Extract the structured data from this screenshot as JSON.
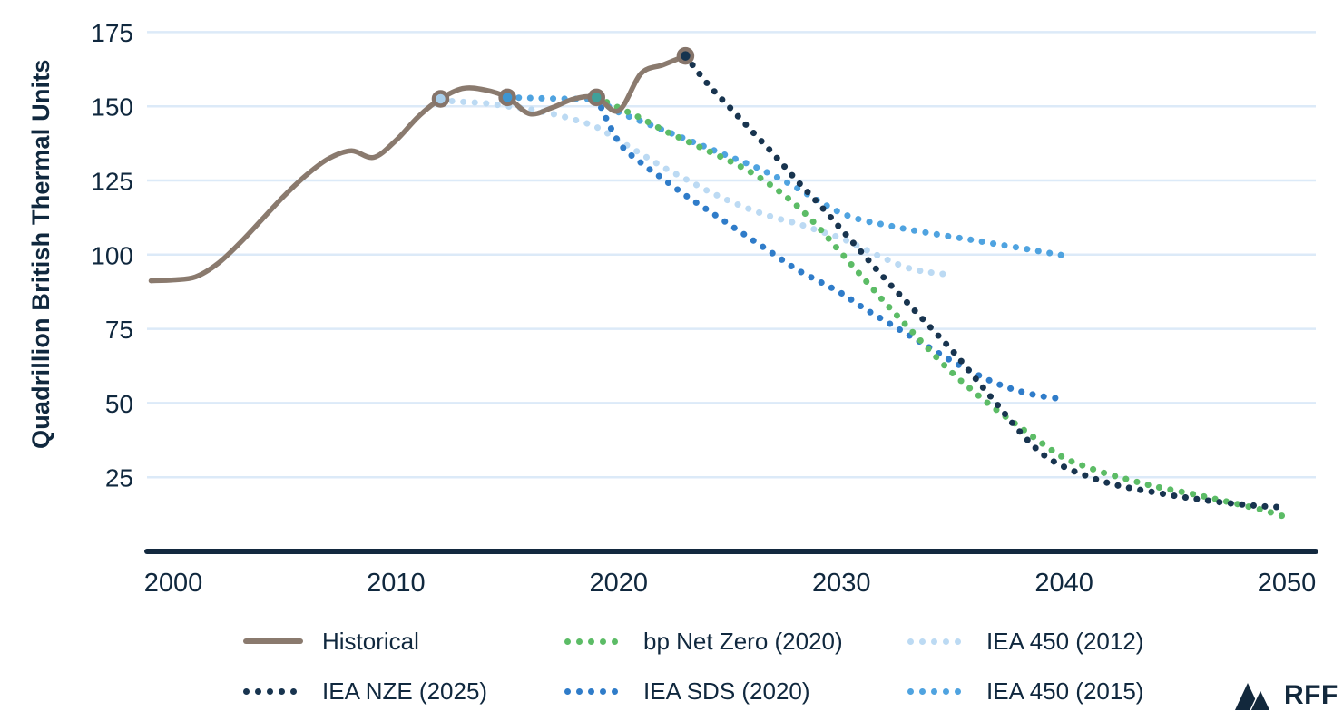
{
  "colors": {
    "text": "#10283E",
    "axis": "#13293F",
    "grid": "#DCEAF8",
    "marker_ring": "#85746A"
  },
  "branding": {
    "logo_text": "RFF"
  },
  "chart_data": {
    "type": "line",
    "title": "",
    "xlabel": "",
    "ylabel": "Quadrillion British Thermal Units",
    "x_range": [
      2000,
      2050
    ],
    "y_range": [
      0,
      175
    ],
    "x_ticks": [
      2000,
      2010,
      2020,
      2030,
      2040,
      2050
    ],
    "y_ticks": [
      175,
      150,
      125,
      100,
      75,
      50,
      25
    ],
    "grid": true,
    "legend_position": "bottom",
    "series": [
      {
        "name": "Historical",
        "style": "solid",
        "color": "#8A7A6E",
        "points": [
          [
            1999,
            91.2
          ],
          [
            2000,
            91.5
          ],
          [
            2001,
            92.5
          ],
          [
            2002,
            97
          ],
          [
            2003,
            104
          ],
          [
            2004,
            112
          ],
          [
            2005,
            120
          ],
          [
            2006,
            127
          ],
          [
            2007,
            132.5
          ],
          [
            2008,
            135
          ],
          [
            2009,
            132.8
          ],
          [
            2010,
            138.5
          ],
          [
            2011,
            146.5
          ],
          [
            2012,
            152.5
          ],
          [
            2013,
            156
          ],
          [
            2014,
            155.5
          ],
          [
            2015,
            153
          ],
          [
            2016,
            147.5
          ],
          [
            2017,
            149.5
          ],
          [
            2018,
            152.5
          ],
          [
            2019,
            153
          ],
          [
            2020,
            148.5
          ],
          [
            2021,
            161
          ],
          [
            2022,
            164
          ],
          [
            2023,
            167
          ]
        ]
      },
      {
        "name": "bp Net Zero (2020)",
        "style": "dotted",
        "color": "#5CBC66",
        "points": [
          [
            2019,
            153
          ],
          [
            2020,
            149.5
          ],
          [
            2021,
            146
          ],
          [
            2022,
            142
          ],
          [
            2023,
            138.5
          ],
          [
            2024,
            135
          ],
          [
            2025,
            131.5
          ],
          [
            2026,
            127.5
          ],
          [
            2027,
            122.5
          ],
          [
            2028,
            116.5
          ],
          [
            2029,
            109
          ],
          [
            2030,
            100.5
          ],
          [
            2031,
            92
          ],
          [
            2032,
            83.5
          ],
          [
            2033,
            75.5
          ],
          [
            2034,
            67.5
          ],
          [
            2035,
            60
          ],
          [
            2036,
            53.5
          ],
          [
            2037,
            47.5
          ],
          [
            2038,
            42
          ],
          [
            2039,
            36.5
          ],
          [
            2040,
            31.5
          ],
          [
            2041,
            28.5
          ],
          [
            2042,
            26
          ],
          [
            2043,
            24
          ],
          [
            2044,
            22
          ],
          [
            2045,
            20.5
          ],
          [
            2046,
            19
          ],
          [
            2047,
            17.3
          ],
          [
            2048,
            15.6
          ],
          [
            2049,
            13.8
          ],
          [
            2050,
            11.5
          ]
        ]
      },
      {
        "name": "IEA 450 (2012)",
        "style": "dotted",
        "color": "#BCDAF3",
        "points": [
          [
            2012,
            152
          ],
          [
            2013,
            151.5
          ],
          [
            2014,
            151
          ],
          [
            2015,
            150
          ],
          [
            2016,
            149
          ],
          [
            2017,
            147.5
          ],
          [
            2018,
            145.5
          ],
          [
            2019,
            143
          ],
          [
            2020,
            138.5
          ],
          [
            2021,
            134
          ],
          [
            2022,
            129.5
          ],
          [
            2023,
            125.5
          ],
          [
            2024,
            121.5
          ],
          [
            2025,
            118
          ],
          [
            2026,
            115
          ],
          [
            2027,
            112.5
          ],
          [
            2028,
            110.5
          ],
          [
            2029,
            108
          ],
          [
            2030,
            105.5
          ],
          [
            2031,
            102
          ],
          [
            2032,
            98.5
          ],
          [
            2033,
            95.5
          ],
          [
            2034,
            94
          ],
          [
            2035,
            93.2
          ]
        ]
      },
      {
        "name": "IEA NZE (2025)",
        "style": "dotted",
        "color": "#18344F",
        "points": [
          [
            2023,
            167
          ],
          [
            2024,
            157.5
          ],
          [
            2025,
            149.5
          ],
          [
            2026,
            141.5
          ],
          [
            2027,
            133.5
          ],
          [
            2028,
            125
          ],
          [
            2029,
            117
          ],
          [
            2030,
            108.5
          ],
          [
            2031,
            100
          ],
          [
            2032,
            91.5
          ],
          [
            2033,
            83.5
          ],
          [
            2034,
            75.5
          ],
          [
            2035,
            67.5
          ],
          [
            2036,
            58.5
          ],
          [
            2037,
            49.5
          ],
          [
            2038,
            40.5
          ],
          [
            2039,
            33
          ],
          [
            2040,
            28.5
          ],
          [
            2041,
            25.5
          ],
          [
            2042,
            23
          ],
          [
            2043,
            21.3
          ],
          [
            2044,
            20
          ],
          [
            2045,
            18.7
          ],
          [
            2046,
            17.6
          ],
          [
            2047,
            16.6
          ],
          [
            2048,
            15.8
          ],
          [
            2049,
            15.2
          ],
          [
            2050,
            14.8
          ]
        ]
      },
      {
        "name": "IEA SDS (2020)",
        "style": "dotted",
        "color": "#2F7CC9",
        "points": [
          [
            2019,
            153
          ],
          [
            2020,
            138
          ],
          [
            2021,
            131
          ],
          [
            2022,
            125.5
          ],
          [
            2023,
            120
          ],
          [
            2024,
            115
          ],
          [
            2025,
            110
          ],
          [
            2026,
            105
          ],
          [
            2027,
            100
          ],
          [
            2028,
            95
          ],
          [
            2029,
            91
          ],
          [
            2030,
            87
          ],
          [
            2031,
            82
          ],
          [
            2032,
            77.5
          ],
          [
            2033,
            73
          ],
          [
            2034,
            68.5
          ],
          [
            2035,
            64
          ],
          [
            2036,
            60
          ],
          [
            2037,
            56.5
          ],
          [
            2038,
            54
          ],
          [
            2039,
            52.3
          ],
          [
            2040,
            51.3
          ]
        ]
      },
      {
        "name": "IEA 450 (2015)",
        "style": "dotted",
        "color": "#4FA3E0",
        "points": [
          [
            2015,
            153
          ],
          [
            2016,
            152.8
          ],
          [
            2017,
            152.6
          ],
          [
            2018,
            152.5
          ],
          [
            2019,
            152
          ],
          [
            2020,
            148
          ],
          [
            2021,
            145
          ],
          [
            2022,
            142
          ],
          [
            2023,
            139
          ],
          [
            2024,
            136
          ],
          [
            2025,
            133
          ],
          [
            2026,
            130
          ],
          [
            2027,
            126.5
          ],
          [
            2028,
            122.5
          ],
          [
            2029,
            118
          ],
          [
            2030,
            114
          ],
          [
            2031,
            111.5
          ],
          [
            2032,
            110
          ],
          [
            2033,
            108.5
          ],
          [
            2034,
            107.2
          ],
          [
            2035,
            106
          ],
          [
            2036,
            104.8
          ],
          [
            2037,
            103.5
          ],
          [
            2038,
            102.3
          ],
          [
            2039,
            101
          ],
          [
            2040,
            99.7
          ]
        ]
      }
    ],
    "markers": [
      {
        "x": 2012,
        "y": 152.5,
        "color": "#A9CFEC"
      },
      {
        "x": 2015,
        "y": 153,
        "color": "#3E96D2"
      },
      {
        "x": 2019,
        "y": 153,
        "color": "#3FA09A"
      },
      {
        "x": 2023,
        "y": 167,
        "color": "#16344F"
      }
    ]
  }
}
